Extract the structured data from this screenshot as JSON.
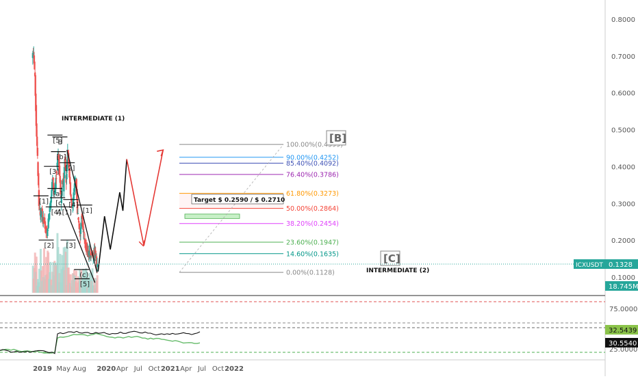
{
  "chart_data": {
    "type": "candlestick",
    "symbol": "ICXUSDT",
    "price_axis": {
      "ticks": [
        "0.8000",
        "0.7000",
        "0.6000",
        "0.5000",
        "0.4000",
        "0.3000",
        "0.2000",
        "0.1000"
      ],
      "tick_values": [
        0.8,
        0.7,
        0.6,
        0.5,
        0.4,
        0.3,
        0.2,
        0.1
      ],
      "ylim": [
        0.08,
        0.84
      ],
      "last_price": "0.1328",
      "last_price_value": 0.1328,
      "volume_label": "18.745M"
    },
    "time_axis": {
      "labels": [
        "2019",
        "May",
        "Aug",
        "2020",
        "Apr",
        "Jul",
        "Oct",
        "2021",
        "Apr",
        "Jul",
        "Oct",
        "2022"
      ],
      "label_days": [
        0,
        120,
        212,
        365,
        456,
        547,
        639,
        731,
        821,
        912,
        1004,
        1096
      ]
    },
    "price_series": {
      "name": "ICXUSDT",
      "points": [
        [
          -60,
          0.7
        ],
        [
          -52,
          0.71
        ],
        [
          -45,
          0.64
        ],
        [
          -38,
          0.52
        ],
        [
          -30,
          0.42
        ],
        [
          -22,
          0.3
        ],
        [
          -14,
          0.27
        ],
        [
          -6,
          0.28
        ],
        [
          0,
          0.25
        ],
        [
          8,
          0.26
        ],
        [
          16,
          0.23
        ],
        [
          24,
          0.21
        ],
        [
          32,
          0.25
        ],
        [
          40,
          0.29
        ],
        [
          48,
          0.32
        ],
        [
          56,
          0.37
        ],
        [
          64,
          0.33
        ],
        [
          72,
          0.35
        ],
        [
          80,
          0.39
        ],
        [
          88,
          0.44
        ],
        [
          96,
          0.38
        ],
        [
          104,
          0.31
        ],
        [
          112,
          0.37
        ],
        [
          118,
          0.34
        ],
        [
          126,
          0.42
        ],
        [
          134,
          0.36
        ],
        [
          142,
          0.44
        ],
        [
          150,
          0.4
        ],
        [
          158,
          0.33
        ],
        [
          166,
          0.29
        ],
        [
          174,
          0.31
        ],
        [
          182,
          0.35
        ],
        [
          190,
          0.36
        ],
        [
          198,
          0.28
        ],
        [
          206,
          0.24
        ],
        [
          214,
          0.22
        ],
        [
          222,
          0.27
        ],
        [
          230,
          0.23
        ],
        [
          238,
          0.2
        ],
        [
          246,
          0.18
        ],
        [
          254,
          0.17
        ],
        [
          262,
          0.16
        ],
        [
          270,
          0.165
        ],
        [
          278,
          0.16
        ],
        [
          286,
          0.165
        ],
        [
          294,
          0.17
        ],
        [
          302,
          0.16
        ],
        [
          306,
          0.14
        ],
        [
          310,
          0.1328
        ]
      ]
    },
    "fibonacci_levels": [
      {
        "label": "100.00%(0.4599)",
        "value": 0.4599,
        "color": "#888888"
      },
      {
        "label": "90.00%(0.4252)",
        "value": 0.4252,
        "color": "#2196f3"
      },
      {
        "label": "85.40%(0.4092)",
        "value": 0.4092,
        "color": "#3f51b5"
      },
      {
        "label": "76.40%(0.3786)",
        "value": 0.3786,
        "color": "#9c27b0"
      },
      {
        "label": "61.80%(0.3273)",
        "value": 0.3273,
        "color": "#ff9800"
      },
      {
        "label": "50.00%(0.2864)",
        "value": 0.2864,
        "color": "#f44336"
      },
      {
        "label": "38.20%(0.2454)",
        "value": 0.2454,
        "color": "#e040fb"
      },
      {
        "label": "23.60%(0.1947)",
        "value": 0.1947,
        "color": "#4caf50"
      },
      {
        "label": "14.60%(0.1635)",
        "value": 0.1635,
        "color": "#009688"
      },
      {
        "label": "0.00%(0.1128)",
        "value": 0.1128,
        "color": "#888888"
      }
    ],
    "projection_black": [
      [
        318,
        0.115
      ],
      [
        355,
        0.265
      ],
      [
        388,
        0.175
      ],
      [
        442,
        0.33
      ],
      [
        460,
        0.28
      ],
      [
        482,
        0.42
      ]
    ],
    "projection_red": [
      [
        482,
        0.42
      ],
      [
        580,
        0.185
      ],
      [
        690,
        0.445
      ]
    ],
    "wave_labels": [
      "[1]",
      "[2]",
      "[3]",
      "[4]",
      "[5]",
      "[a]",
      "[b]",
      "[c",
      "A",
      "B",
      "[2]",
      "[4]",
      "[1]",
      "[3]",
      "[5]",
      "(c)",
      "[1]"
    ],
    "annotations": {
      "intermediate_1": "INTERMEDIATE (1)",
      "intermediate_2": "INTERMEDIATE (2)",
      "target": "Target $ 0.2590 / $ 0.2710",
      "wave_B": "[B]",
      "wave_C": "[C]"
    },
    "rsi_panel": {
      "ticks": [
        "75.0000",
        "25.0000"
      ],
      "value_labels": [
        "32.5439",
        "30.5540"
      ]
    }
  }
}
